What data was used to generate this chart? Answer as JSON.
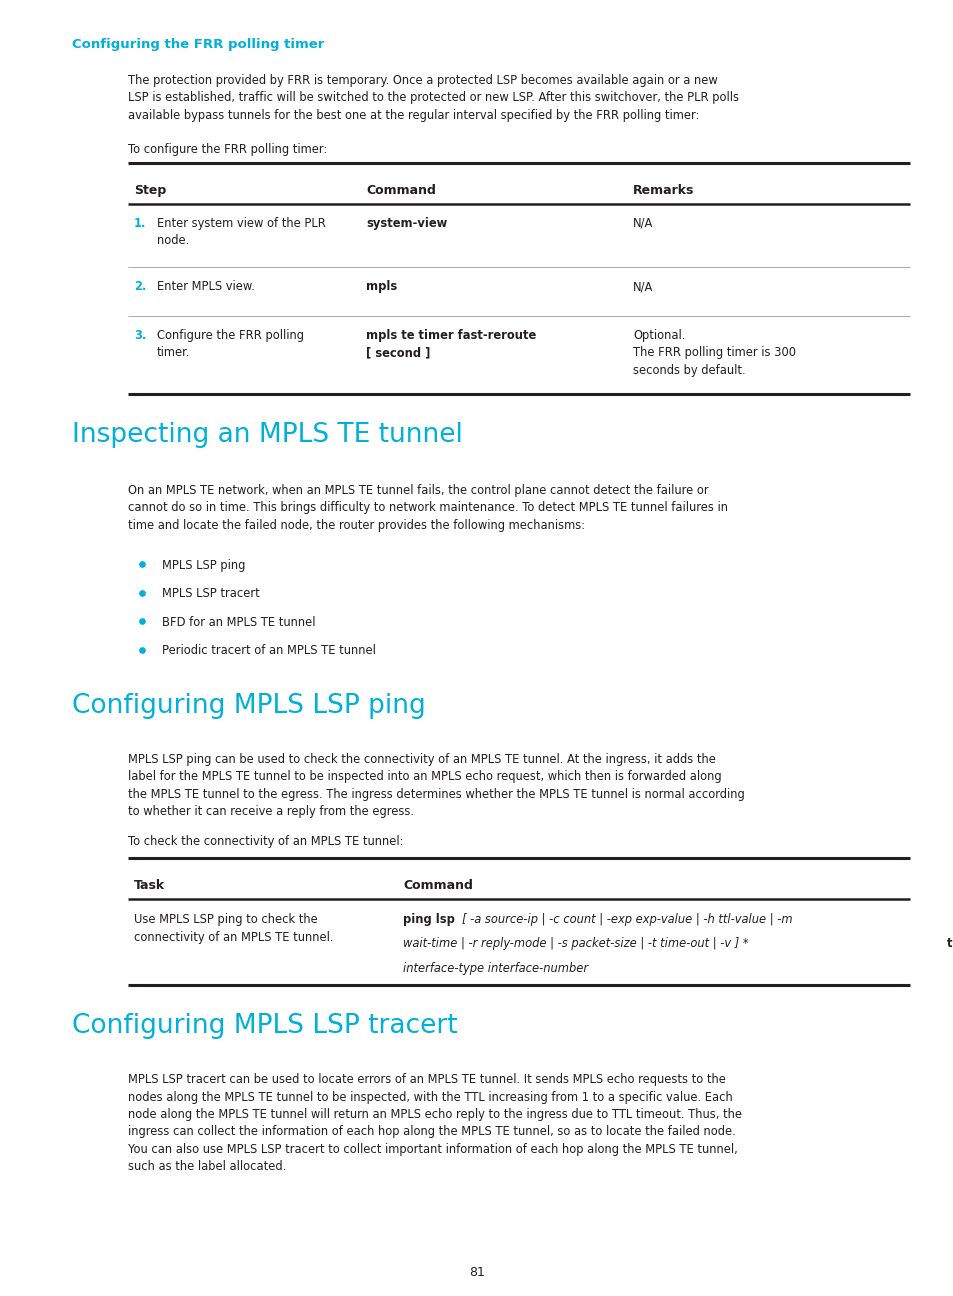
{
  "page_bg": "#ffffff",
  "cyan_color": "#00b0d8",
  "black_color": "#231f20",
  "section1_heading": "Configuring the FRR polling timer",
  "section1_para1": "The protection provided by FRR is temporary. Once a protected LSP becomes available again or a new\nLSP is established, traffic will be switched to the protected or new LSP. After this switchover, the PLR polls\navailable bypass tunnels for the best one at the regular interval specified by the FRR polling timer:",
  "section1_para2": "To configure the FRR polling timer:",
  "section2_heading": "Inspecting an MPLS TE tunnel",
  "section2_para1": "On an MPLS TE network, when an MPLS TE tunnel fails, the control plane cannot detect the failure or\ncannot do so in time. This brings difficulty to network maintenance. To detect MPLS TE tunnel failures in\ntime and locate the failed node, the router provides the following mechanisms:",
  "section2_bullets": [
    "MPLS LSP ping",
    "MPLS LSP tracert",
    "BFD for an MPLS TE tunnel",
    "Periodic tracert of an MPLS TE tunnel"
  ],
  "section3_heading": "Configuring MPLS LSP ping",
  "section3_para1": "MPLS LSP ping can be used to check the connectivity of an MPLS TE tunnel. At the ingress, it adds the\nlabel for the MPLS TE tunnel to be inspected into an MPLS echo request, which then is forwarded along\nthe MPLS TE tunnel to the egress. The ingress determines whether the MPLS TE tunnel is normal according\nto whether it can receive a reply from the egress.",
  "section3_para2": "To check the connectivity of an MPLS TE tunnel:",
  "section4_heading": "Configuring MPLS LSP tracert",
  "section4_para1": "MPLS LSP tracert can be used to locate errors of an MPLS TE tunnel. It sends MPLS echo requests to the\nnodes along the MPLS TE tunnel to be inspected, with the TTL increasing from 1 to a specific value. Each\nnode along the MPLS TE tunnel will return an MPLS echo reply to the ingress due to TTL timeout. Thus, the\ningress can collect the information of each hop along the MPLS TE tunnel, so as to locate the failed node.\nYou can also use MPLS LSP tracert to collect important information of each hop along the MPLS TE tunnel,\nsuch as the label allocated.",
  "page_number": "81"
}
